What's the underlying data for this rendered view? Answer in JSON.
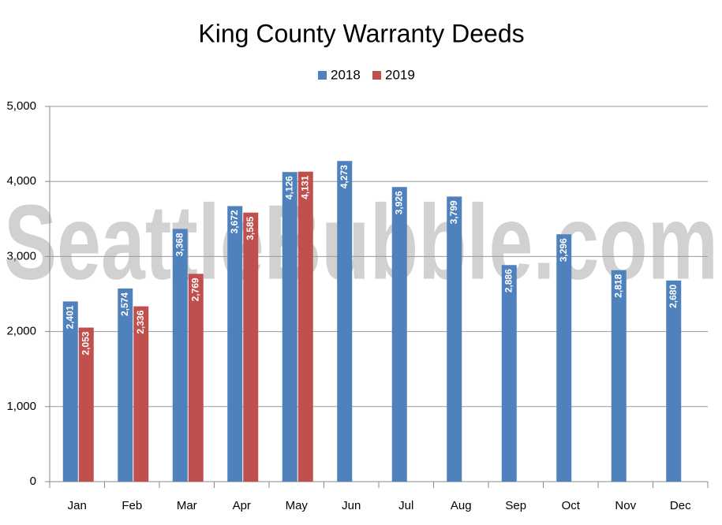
{
  "chart_data": {
    "type": "bar",
    "title": "King County Warranty Deeds",
    "watermark": "SeattleBubble.com",
    "categories": [
      "Jan",
      "Feb",
      "Mar",
      "Apr",
      "May",
      "Jun",
      "Jul",
      "Aug",
      "Sep",
      "Oct",
      "Nov",
      "Dec"
    ],
    "series": [
      {
        "name": "2018",
        "color": "#4f81bd",
        "values": [
          2401,
          2574,
          3368,
          3672,
          4126,
          4273,
          3926,
          3799,
          2886,
          3296,
          2818,
          2680
        ],
        "value_labels": [
          "2,401",
          "2,574",
          "3,368",
          "3,672",
          "4,126",
          "4,273",
          "3,926",
          "3,799",
          "2,886",
          "3,296",
          "2,818",
          "2,680"
        ]
      },
      {
        "name": "2019",
        "color": "#c0504d",
        "values": [
          2053,
          2336,
          2769,
          3585,
          4131,
          null,
          null,
          null,
          null,
          null,
          null,
          null
        ],
        "value_labels": [
          "2,053",
          "2,336",
          "2,769",
          "3,585",
          "4,131",
          null,
          null,
          null,
          null,
          null,
          null,
          null
        ]
      }
    ],
    "ylim": [
      0,
      5000
    ],
    "yticks": [
      0,
      {
        "value": 1000,
        "label": "1,000"
      },
      {
        "value": 2000,
        "label": "2,000"
      },
      {
        "value": 3000,
        "label": "3,000"
      },
      {
        "value": 4000,
        "label": "4,000"
      },
      {
        "value": 5000,
        "label": "5,000"
      }
    ],
    "grid": true,
    "legend": "top"
  }
}
